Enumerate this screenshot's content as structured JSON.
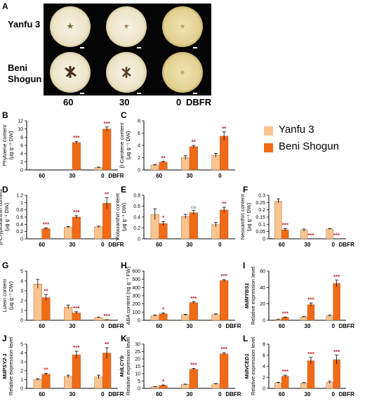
{
  "figure": {
    "panel_a_letter": "A",
    "cultivar_1": "Yanfu 3",
    "cultivar_2_line1": "Beni",
    "cultivar_2_line2": "Shogun",
    "photo_x_labels": [
      "60",
      "30",
      "0",
      "DBFR"
    ]
  },
  "legend": {
    "entries": [
      {
        "label": "Yanfu 3",
        "color": "#fbc48f"
      },
      {
        "label": "Beni Shogun",
        "color": "#f26a16"
      }
    ]
  },
  "colors": {
    "yanfu": "#fbc48f",
    "beni": "#f26a16",
    "sig": "#c0282d",
    "ns": "#7f9c9e"
  },
  "chart_data": [
    {
      "panel": "B",
      "type": "bar",
      "ylabel_line1": "Phytoene content",
      "ylabel_line2": "(µg g⁻¹ DW)",
      "categories": [
        "60",
        "30",
        "0"
      ],
      "xunit": "DBFR",
      "ylim": [
        0,
        12
      ],
      "yticks": [
        0,
        2,
        4,
        6,
        8,
        10,
        12
      ],
      "series": [
        {
          "name": "Yanfu 3",
          "values": [
            0,
            0,
            0.6
          ],
          "errors": [
            0,
            0,
            0.1
          ]
        },
        {
          "name": "Beni Shogun",
          "values": [
            0,
            6.7,
            10.0
          ],
          "errors": [
            0,
            0.3,
            0.5
          ]
        }
      ],
      "significance": [
        "",
        "***",
        "***"
      ]
    },
    {
      "panel": "C",
      "type": "bar",
      "ylabel_line1": "β-Carotene content",
      "ylabel_line2": "(µg g⁻¹ DW)",
      "categories": [
        "60",
        "30",
        "0"
      ],
      "xunit": "",
      "ylim": [
        0,
        8
      ],
      "yticks": [
        0,
        2,
        4,
        6,
        8
      ],
      "series": [
        {
          "name": "Yanfu 3",
          "values": [
            0.8,
            2.0,
            2.4
          ],
          "errors": [
            0.1,
            0.3,
            0.3
          ]
        },
        {
          "name": "Beni Shogun",
          "values": [
            1.3,
            3.8,
            5.5
          ],
          "errors": [
            0.1,
            0.2,
            0.7
          ]
        }
      ],
      "significance": [
        "**",
        "**",
        "**"
      ]
    },
    {
      "panel": "D",
      "type": "bar",
      "ylabel_line1": "β-Cryptoxanthin content",
      "ylabel_line2": "(µg g⁻¹ DW)",
      "categories": [
        "60",
        "30",
        "0"
      ],
      "xunit": "DBFR",
      "ylim": [
        0,
        1.2
      ],
      "yticks": [
        0,
        0.2,
        0.4,
        0.6,
        0.8,
        1.0,
        1.2
      ],
      "series": [
        {
          "name": "Yanfu 3",
          "values": [
            0,
            0.32,
            0.33
          ],
          "errors": [
            0,
            0.02,
            0.02
          ]
        },
        {
          "name": "Beni Shogun",
          "values": [
            0.28,
            0.6,
            0.98
          ],
          "errors": [
            0.02,
            0.04,
            0.15
          ]
        }
      ],
      "significance": [
        "***",
        "***",
        "**"
      ]
    },
    {
      "panel": "E",
      "type": "bar",
      "ylabel_line1": "Violaxanthin content",
      "ylabel_line2": "(µg g⁻¹ DW)",
      "categories": [
        "60",
        "30",
        "0"
      ],
      "xunit": "",
      "ylim": [
        0,
        0.8
      ],
      "yticks": [
        0,
        0.2,
        0.4,
        0.6,
        0.8
      ],
      "series": [
        {
          "name": "Yanfu 3",
          "values": [
            0.45,
            0.41,
            0.26
          ],
          "errors": [
            0.1,
            0.04,
            0.04
          ]
        },
        {
          "name": "Beni Shogun",
          "values": [
            0.28,
            0.48,
            0.53
          ],
          "errors": [
            0.04,
            0.04,
            0.05
          ]
        }
      ],
      "significance": [
        "*",
        "ns",
        "**"
      ]
    },
    {
      "panel": "F",
      "type": "bar",
      "ylabel_line1": "Neoxanthin content",
      "ylabel_line2": "(µg g⁻¹ DW)",
      "categories": [
        "60",
        "30",
        "0"
      ],
      "xunit": "DBFR",
      "ylim": [
        0,
        0.3
      ],
      "yticks": [
        0,
        0.05,
        0.1,
        0.15,
        0.2,
        0.25,
        0.3
      ],
      "series": [
        {
          "name": "Yanfu 3",
          "values": [
            0.26,
            0.06,
            0.068
          ],
          "errors": [
            0.015,
            0.008,
            0.003
          ]
        },
        {
          "name": "Beni Shogun",
          "values": [
            0.062,
            0,
            0
          ],
          "errors": [
            0.008,
            0,
            0
          ]
        }
      ],
      "significance": [
        "***",
        "***",
        "***"
      ]
    },
    {
      "panel": "G",
      "type": "bar",
      "ylabel_line1": "Lutein content",
      "ylabel_line2": "(µg g⁻¹ DW)",
      "categories": [
        "60",
        "30",
        "0"
      ],
      "xunit": "DBFR",
      "ylim": [
        0,
        5
      ],
      "yticks": [
        0,
        1,
        2,
        3,
        4,
        5
      ],
      "series": [
        {
          "name": "Yanfu 3",
          "values": [
            3.7,
            1.35,
            0.28
          ],
          "errors": [
            0.45,
            0.2,
            0.03
          ]
        },
        {
          "name": "Beni Shogun",
          "values": [
            2.3,
            0.75,
            0.05
          ],
          "errors": [
            0.3,
            0.12,
            0.01
          ]
        }
      ],
      "significance": [
        "**",
        "***",
        "***"
      ]
    },
    {
      "panel": "H",
      "type": "bar",
      "ylabel_line1": "ABA content (ng g⁻¹ FW)",
      "ylabel_line2": "",
      "categories": [
        "60",
        "30",
        "0"
      ],
      "xunit": "DBFR",
      "ylim": [
        0,
        600
      ],
      "yticks": [
        0,
        100,
        200,
        300,
        400,
        500,
        600
      ],
      "series": [
        {
          "name": "Yanfu 3",
          "values": [
            55,
            65,
            70
          ],
          "errors": [
            8,
            8,
            8
          ]
        },
        {
          "name": "Beni Shogun",
          "values": [
            80,
            215,
            485
          ],
          "errors": [
            8,
            10,
            12
          ]
        }
      ],
      "significance": [
        "*",
        "***",
        "***"
      ]
    },
    {
      "panel": "I",
      "type": "bar",
      "ylabel_line1": "MdMYBS1",
      "ylabel_line2": "Relative expression level",
      "categories": [
        "60",
        "30",
        "0"
      ],
      "xunit": "DBFR",
      "ylim": [
        0,
        60
      ],
      "yticks": [
        0,
        20,
        40,
        60
      ],
      "series": [
        {
          "name": "Yanfu 3",
          "values": [
            1,
            4,
            5.5
          ],
          "errors": [
            0.2,
            0.5,
            0.8
          ]
        },
        {
          "name": "Beni Shogun",
          "values": [
            3.5,
            19,
            45
          ],
          "errors": [
            0.4,
            2,
            4
          ]
        }
      ],
      "significance": [
        "***",
        "***",
        "***"
      ]
    },
    {
      "panel": "J",
      "type": "bar",
      "ylabel_line1": "MdPSY2-1",
      "ylabel_line2": "Relative expression level",
      "categories": [
        "60",
        "30",
        "0"
      ],
      "xunit": "DBFR",
      "ylim": [
        0,
        5
      ],
      "yticks": [
        0,
        1,
        2,
        3,
        4,
        5
      ],
      "series": [
        {
          "name": "Yanfu 3",
          "values": [
            1.0,
            1.35,
            1.3
          ],
          "errors": [
            0.1,
            0.15,
            0.2
          ]
        },
        {
          "name": "Beni Shogun",
          "values": [
            1.6,
            3.8,
            4.0
          ],
          "errors": [
            0.1,
            0.4,
            0.6
          ]
        }
      ],
      "significance": [
        "**",
        "***",
        "**"
      ]
    },
    {
      "panel": "K",
      "type": "bar",
      "ylabel_line1": "MdLCYb",
      "ylabel_line2": "Relative expression level",
      "categories": [
        "60",
        "30",
        "0"
      ],
      "xunit": "DBFR",
      "ylim": [
        0,
        30
      ],
      "yticks": [
        0,
        5,
        10,
        15,
        20,
        25,
        30
      ],
      "series": [
        {
          "name": "Yanfu 3",
          "values": [
            1,
            2.6,
            3
          ],
          "errors": [
            0.2,
            0.3,
            0.3
          ]
        },
        {
          "name": "Beni Shogun",
          "values": [
            2,
            13,
            23.5
          ],
          "errors": [
            0.3,
            0.6,
            0.8
          ]
        }
      ],
      "significance": [
        "*",
        "***",
        "***"
      ]
    },
    {
      "panel": "L",
      "type": "bar",
      "ylabel_line1": "MdNCED1",
      "ylabel_line2": "Relative expression level",
      "categories": [
        "60",
        "30",
        "0"
      ],
      "xunit": "DBFR",
      "ylim": [
        0,
        8
      ],
      "yticks": [
        0,
        2,
        4,
        6,
        8
      ],
      "series": [
        {
          "name": "Yanfu 3",
          "values": [
            1.0,
            0.95,
            1.1
          ],
          "errors": [
            0.1,
            0.1,
            0.2
          ]
        },
        {
          "name": "Beni Shogun",
          "values": [
            2.2,
            5.0,
            5.2
          ],
          "errors": [
            0.2,
            0.6,
            0.8
          ]
        }
      ],
      "significance": [
        "***",
        "***",
        "***"
      ]
    }
  ]
}
